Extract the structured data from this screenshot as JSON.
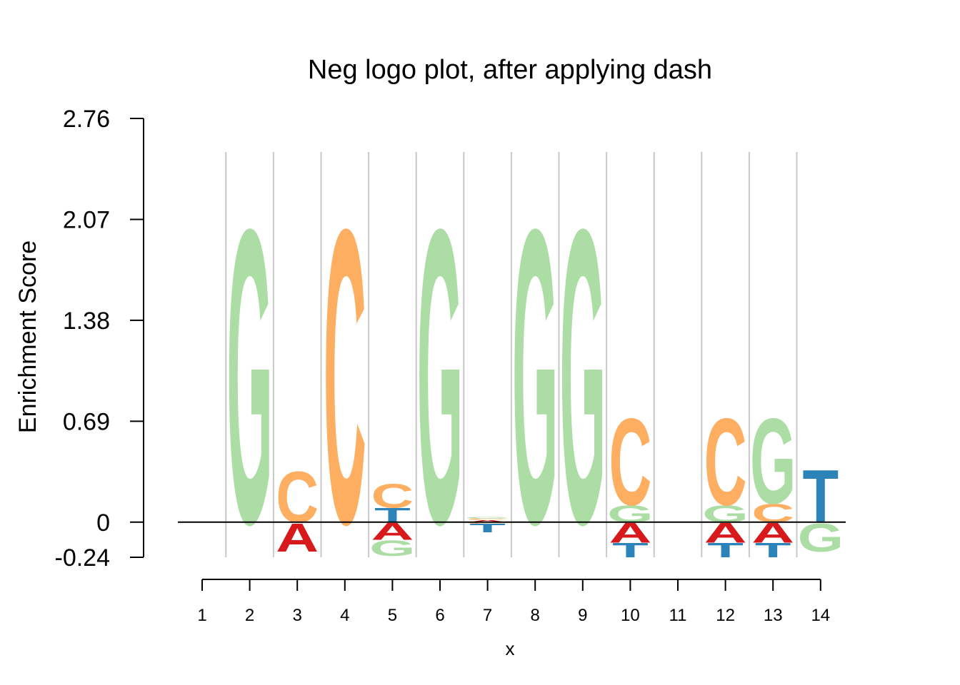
{
  "chart_data": {
    "type": "logo",
    "title": "Neg logo plot, after applying dash",
    "xlabel": "x",
    "ylabel": "Enrichment Score",
    "y_ticks": [
      "2.76",
      "2.07",
      "1.38",
      "0.69",
      "0",
      "-0.24"
    ],
    "y_tick_values": [
      2.76,
      2.07,
      1.38,
      0.69,
      0,
      -0.24
    ],
    "ylim": [
      -0.24,
      2.76
    ],
    "x_ticks": [
      "1",
      "2",
      "3",
      "4",
      "5",
      "6",
      "7",
      "8",
      "9",
      "10",
      "11",
      "12",
      "13",
      "14"
    ],
    "x_tick_values": [
      1,
      2,
      3,
      4,
      5,
      6,
      7,
      8,
      9,
      10,
      11,
      12,
      13,
      14
    ],
    "grid": "vertical separators",
    "colors": {
      "A": "#d7191c",
      "C": "#fdae61",
      "G": "#abdda4",
      "T": "#2b83ba"
    },
    "positions": [
      {
        "x": 2,
        "positive": [
          {
            "letter": "G",
            "value": 2.07
          }
        ],
        "negative": []
      },
      {
        "x": 3,
        "positive": [
          {
            "letter": "C",
            "value": 0.36
          }
        ],
        "negative": [
          {
            "letter": "A",
            "value": 0.2
          }
        ]
      },
      {
        "x": 4,
        "positive": [
          {
            "letter": "C",
            "value": 2.07
          }
        ],
        "negative": []
      },
      {
        "x": 5,
        "positive": [
          {
            "letter": "T",
            "value": 0.1
          },
          {
            "letter": "C",
            "value": 0.17
          }
        ],
        "negative": [
          {
            "letter": "A",
            "value": 0.12
          },
          {
            "letter": "G",
            "value": 0.11
          }
        ]
      },
      {
        "x": 6,
        "positive": [
          {
            "letter": "G",
            "value": 2.07
          }
        ],
        "negative": []
      },
      {
        "x": 7,
        "positive": [
          {
            "letter": "A",
            "value": 0.015
          },
          {
            "letter": "C",
            "value": 0.01
          },
          {
            "letter": "G",
            "value": 0.01
          }
        ],
        "negative": [
          {
            "letter": "C",
            "value": 0.01
          },
          {
            "letter": "T",
            "value": 0.06
          }
        ]
      },
      {
        "x": 8,
        "positive": [
          {
            "letter": "G",
            "value": 2.07
          }
        ],
        "negative": []
      },
      {
        "x": 9,
        "positive": [
          {
            "letter": "G",
            "value": 2.07
          }
        ],
        "negative": []
      },
      {
        "x": 10,
        "positive": [
          {
            "letter": "G",
            "value": 0.12
          },
          {
            "letter": "C",
            "value": 0.61
          }
        ],
        "negative": [
          {
            "letter": "A",
            "value": 0.14
          },
          {
            "letter": "T",
            "value": 0.1
          }
        ]
      },
      {
        "x": 12,
        "positive": [
          {
            "letter": "G",
            "value": 0.12
          },
          {
            "letter": "C",
            "value": 0.61
          }
        ],
        "negative": [
          {
            "letter": "A",
            "value": 0.14
          },
          {
            "letter": "T",
            "value": 0.1
          }
        ]
      },
      {
        "x": 13,
        "positive": [
          {
            "letter": "C",
            "value": 0.13
          },
          {
            "letter": "G",
            "value": 0.6
          }
        ],
        "negative": [
          {
            "letter": "A",
            "value": 0.14
          },
          {
            "letter": "T",
            "value": 0.1
          }
        ]
      },
      {
        "x": 14,
        "positive": [
          {
            "letter": "T",
            "value": 0.37
          }
        ],
        "negative": [
          {
            "letter": "G",
            "value": 0.2
          }
        ]
      }
    ]
  }
}
